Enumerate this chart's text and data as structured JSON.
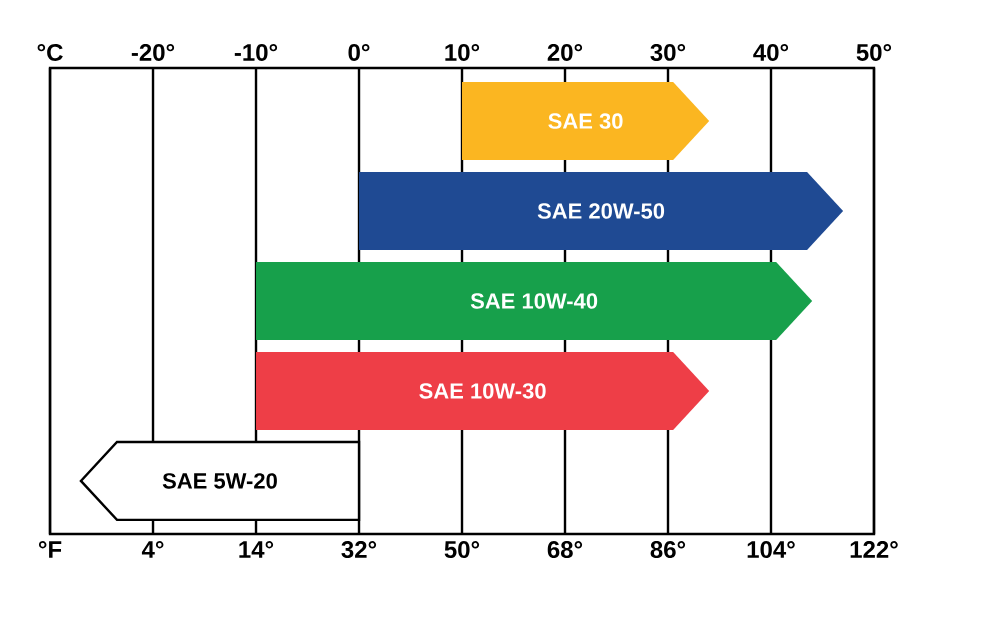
{
  "chart_data": {
    "type": "bar",
    "orientation": "horizontal",
    "categories": [
      "SAE 30",
      "SAE 20W-50",
      "SAE 10W-40",
      "SAE 10W-30",
      "SAE 5W-20"
    ],
    "base": [
      10,
      0,
      -10,
      -10,
      0
    ],
    "values": [
      24,
      47,
      54,
      44,
      -27
    ],
    "colors": [
      "#fbb621",
      "#1f4a93",
      "#17a04b",
      "#ee3e47",
      "#ffffff"
    ],
    "xlim": [
      -30,
      50
    ],
    "xticks": [
      {
        "value": -30,
        "label": "°C"
      },
      {
        "value": -20,
        "label": "-20°"
      },
      {
        "value": -10,
        "label": "-10°"
      },
      {
        "value": 0,
        "label": "0°"
      },
      {
        "value": 10,
        "label": "10°"
      },
      {
        "value": 20,
        "label": "20°"
      },
      {
        "value": 30,
        "label": "30°"
      },
      {
        "value": 40,
        "label": "40°"
      },
      {
        "value": 50,
        "label": "50°"
      }
    ],
    "x2lim": [
      -22,
      122
    ],
    "x2ticks": [
      {
        "value": -22,
        "label": "°F"
      },
      {
        "value": -4,
        "label": "4°"
      },
      {
        "value": 14,
        "label": "14°"
      },
      {
        "value": 32,
        "label": "32°"
      },
      {
        "value": 50,
        "label": "50°"
      },
      {
        "value": 68,
        "label": "68°"
      },
      {
        "value": 86,
        "label": "86°"
      },
      {
        "value": 104,
        "label": "104°"
      },
      {
        "value": 122,
        "label": "122°"
      }
    ],
    "grid": "x",
    "tick_labels": "x"
  }
}
